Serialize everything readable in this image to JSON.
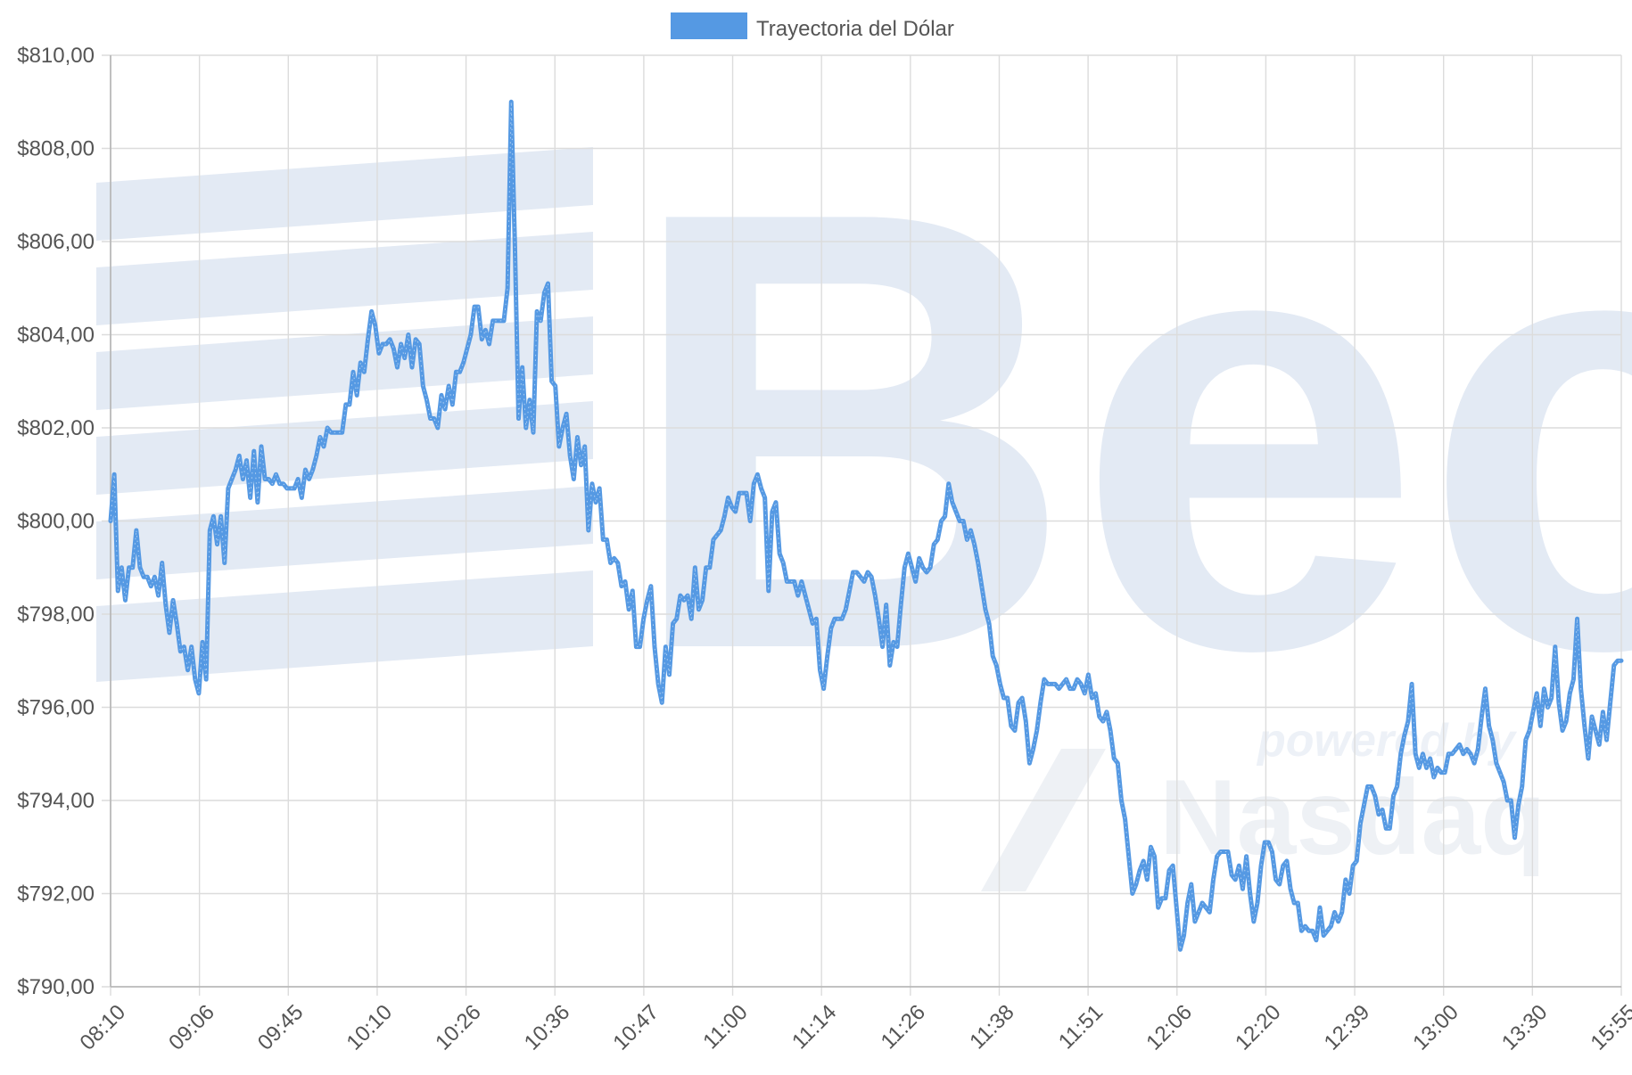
{
  "chart_data": {
    "type": "line",
    "legend": {
      "label": "Trayectoria del Dólar",
      "color": "#5599e3",
      "position": "top-center"
    },
    "watermark": {
      "text": "Bec",
      "tagline": "powered by",
      "brand": "Nasdaq",
      "color": "#e3eaf4"
    },
    "x_tick_labels": [
      "08:10",
      "09:06",
      "09:45",
      "10:10",
      "10:26",
      "10:36",
      "10:47",
      "11:00",
      "11:14",
      "11:26",
      "11:38",
      "11:51",
      "12:06",
      "12:20",
      "12:39",
      "13:00",
      "13:30",
      "15:55"
    ],
    "y_tick_labels": [
      "$790,00",
      "$792,00",
      "$794,00",
      "$796,00",
      "$798,00",
      "$800,00",
      "$802,00",
      "$804,00",
      "$806,00",
      "$808,00",
      "$810,00"
    ],
    "ylim": [
      790,
      810
    ],
    "grid": true,
    "series": [
      {
        "name": "Trayectoria del Dólar",
        "color": "#5599e3",
        "values": [
          800.0,
          801.0,
          798.5,
          799.0,
          798.3,
          799.0,
          799.0,
          799.8,
          799.0,
          798.8,
          798.8,
          798.6,
          798.8,
          798.4,
          799.1,
          798.2,
          797.6,
          798.3,
          797.8,
          797.2,
          797.3,
          796.8,
          797.3,
          796.6,
          796.3,
          797.4,
          796.6,
          799.8,
          800.1,
          799.5,
          800.1,
          799.1,
          800.7,
          800.9,
          801.1,
          801.4,
          800.9,
          801.3,
          800.5,
          801.5,
          800.4,
          801.6,
          800.9,
          800.9,
          800.8,
          801.0,
          800.8,
          800.8,
          800.7,
          800.7,
          800.7,
          800.9,
          800.5,
          801.1,
          800.9,
          801.1,
          801.4,
          801.8,
          801.6,
          802.0,
          801.9,
          801.9,
          801.9,
          801.9,
          802.5,
          802.5,
          803.2,
          802.7,
          803.4,
          803.2,
          803.9,
          804.5,
          804.2,
          803.6,
          803.8,
          803.8,
          803.9,
          803.7,
          803.3,
          803.8,
          803.5,
          804.0,
          803.3,
          803.9,
          803.8,
          802.9,
          802.6,
          802.2,
          802.2,
          802.0,
          802.7,
          802.4,
          802.9,
          802.5,
          803.2,
          803.2,
          803.4,
          803.7,
          804.0,
          804.6,
          804.6,
          803.9,
          804.1,
          803.8,
          804.3,
          804.3,
          804.3,
          804.3,
          805.0,
          809.0,
          805.9,
          802.2,
          803.3,
          802.0,
          802.6,
          801.9,
          804.5,
          804.3,
          804.9,
          805.1,
          803.0,
          802.9,
          801.6,
          802.0,
          802.3,
          801.4,
          800.9,
          801.8,
          801.2,
          801.6,
          799.8,
          800.8,
          800.4,
          800.7,
          799.6,
          799.6,
          799.1,
          799.2,
          799.1,
          798.6,
          798.7,
          798.1,
          798.5,
          797.3,
          797.3,
          797.9,
          798.3,
          798.6,
          797.3,
          796.5,
          796.1,
          797.3,
          796.7,
          797.8,
          797.9,
          798.4,
          798.3,
          798.4,
          797.9,
          799.0,
          798.1,
          798.3,
          799.0,
          799.0,
          799.6,
          799.7,
          799.8,
          800.1,
          800.5,
          800.3,
          800.2,
          800.6,
          800.6,
          800.6,
          800.0,
          800.8,
          801.0,
          800.7,
          800.5,
          798.5,
          800.2,
          800.4,
          799.3,
          799.1,
          798.7,
          798.7,
          798.7,
          798.4,
          798.7,
          798.4,
          798.1,
          797.8,
          797.9,
          796.8,
          796.4,
          797.1,
          797.7,
          797.9,
          797.9,
          797.9,
          798.1,
          798.5,
          798.9,
          798.9,
          798.8,
          798.7,
          798.9,
          798.8,
          798.4,
          797.9,
          797.3,
          798.2,
          796.9,
          797.4,
          797.3,
          798.2,
          799.0,
          799.3,
          799.0,
          798.7,
          799.2,
          799.0,
          798.9,
          799.0,
          799.5,
          799.6,
          800.0,
          800.1,
          800.8,
          800.4,
          800.2,
          800.0,
          800.0,
          799.6,
          799.8,
          799.5,
          799.1,
          798.6,
          798.1,
          797.8,
          797.1,
          796.9,
          796.5,
          796.2,
          796.2,
          795.6,
          795.5,
          796.1,
          796.2,
          795.7,
          794.8,
          795.1,
          795.5,
          796.1,
          796.6,
          796.5,
          796.5,
          796.5,
          796.4,
          796.5,
          796.6,
          796.4,
          796.4,
          796.6,
          796.5,
          796.3,
          796.7,
          796.2,
          796.3,
          795.8,
          795.7,
          795.9,
          795.5,
          794.9,
          794.8,
          794.0,
          793.6,
          792.8,
          792.0,
          792.2,
          792.5,
          792.7,
          792.3,
          793.0,
          792.8,
          791.7,
          791.9,
          791.9,
          792.5,
          792.6,
          791.7,
          790.8,
          791.1,
          791.8,
          792.2,
          791.4,
          791.6,
          791.8,
          791.7,
          791.6,
          792.3,
          792.8,
          792.9,
          792.9,
          792.9,
          792.4,
          792.3,
          792.6,
          792.1,
          792.8,
          792.0,
          791.4,
          791.8,
          792.6,
          793.1,
          793.1,
          792.9,
          792.3,
          792.2,
          792.6,
          792.7,
          792.1,
          791.8,
          791.8,
          791.2,
          791.3,
          791.2,
          791.2,
          791.0,
          791.7,
          791.1,
          791.2,
          791.3,
          791.6,
          791.4,
          791.6,
          792.3,
          792.0,
          792.6,
          792.7,
          793.5,
          793.9,
          794.3,
          794.3,
          794.1,
          793.7,
          793.8,
          793.4,
          793.4,
          794.1,
          794.3,
          795.0,
          795.4,
          795.7,
          796.5,
          795.0,
          794.7,
          795.0,
          794.7,
          794.9,
          794.5,
          794.7,
          794.6,
          794.6,
          795.0,
          795.0,
          795.1,
          795.2,
          795.0,
          795.1,
          795.0,
          794.8,
          795.1,
          795.8,
          796.4,
          795.6,
          795.3,
          794.8,
          794.6,
          794.4,
          794.0,
          794.0,
          793.2,
          793.9,
          794.3,
          795.3,
          795.5,
          795.9,
          796.3,
          795.6,
          796.4,
          796.0,
          796.2,
          797.3,
          796.1,
          795.5,
          795.7,
          796.3,
          796.6,
          797.9,
          796.4,
          795.6,
          794.9,
          795.8,
          795.5,
          795.2,
          795.9,
          795.3,
          796.1,
          796.9,
          797.0,
          797.0
        ]
      }
    ]
  }
}
